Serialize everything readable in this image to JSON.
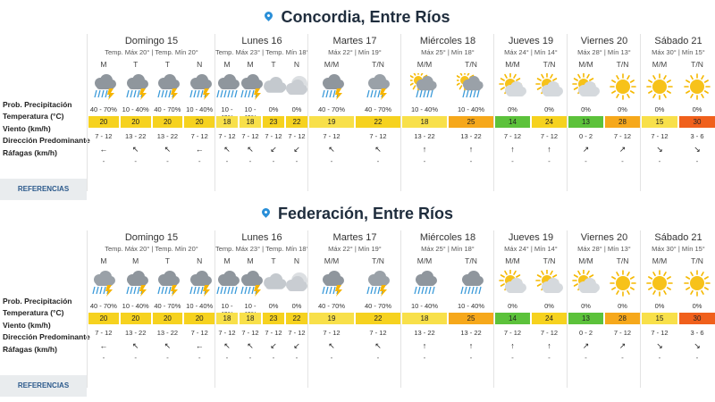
{
  "row_labels": {
    "prob": "Prob. Precipitación",
    "temp": "Temperatura (°C)",
    "wind": "Viento (km/h)",
    "dir": "Dirección Predominante",
    "gust": "Ráfagas (km/h)"
  },
  "reference_button": "REFERENCIAS",
  "temp_colors": {
    "yellow": "#f6d21f",
    "light_yellow": "#f8e04a",
    "green": "#5cc23b",
    "orange": "#f6a81b",
    "red_orange": "#f0601c"
  },
  "locations": [
    {
      "name": "Concordia, Entre Ríos",
      "days": [
        {
          "name": "Domingo 15",
          "minmax": "Temp. Máx 20° | Temp. Mín 20°",
          "slots": [
            {
              "period": "M",
              "icon": "storm-rain",
              "prob": "40 - 70%",
              "temp": "20",
              "color": "#f6d21f",
              "wind": "7 - 12",
              "dir": "←",
              "gust": "-"
            },
            {
              "period": "T",
              "icon": "storm-rain",
              "prob": "10 - 40%",
              "temp": "20",
              "color": "#f6d21f",
              "wind": "13 - 22",
              "dir": "↖",
              "gust": "-"
            },
            {
              "period": "T",
              "icon": "storm-rain",
              "prob": "40 - 70%",
              "temp": "20",
              "color": "#f6d21f",
              "wind": "13 - 22",
              "dir": "↖",
              "gust": "-"
            },
            {
              "period": "N",
              "icon": "storm-rain",
              "prob": "10 - 40%",
              "temp": "20",
              "color": "#f6d21f",
              "wind": "7 - 12",
              "dir": "←",
              "gust": "-"
            }
          ]
        },
        {
          "name": "Lunes 16",
          "minmax": "Temp. Máx 23° | Temp. Mín 18°",
          "slots": [
            {
              "period": "M",
              "icon": "rain-heavy",
              "prob": "10 - 40%",
              "temp": "18",
              "color": "#f8e04a",
              "wind": "7 - 12",
              "dir": "↖",
              "gust": "-"
            },
            {
              "period": "M",
              "icon": "storm-rain",
              "prob": "10 - 40%",
              "temp": "18",
              "color": "#f8e04a",
              "wind": "7 - 12",
              "dir": "↖",
              "gust": "-"
            },
            {
              "period": "T",
              "icon": "cloudy",
              "prob": "0%",
              "temp": "23",
              "color": "#f6d21f",
              "wind": "7 - 12",
              "dir": "↙",
              "gust": "-"
            },
            {
              "period": "N",
              "icon": "partly-moon",
              "prob": "0%",
              "temp": "22",
              "color": "#f6d21f",
              "wind": "7 - 12",
              "dir": "↙",
              "gust": "-"
            }
          ]
        },
        {
          "name": "Martes 17",
          "minmax": "Máx 22° | Mín 19°",
          "slots": [
            {
              "period": "M/M",
              "icon": "storm-rain",
              "prob": "40 - 70%",
              "temp": "19",
              "color": "#f8e04a",
              "wind": "7 - 12",
              "dir": "↖",
              "gust": "-"
            },
            {
              "period": "T/N",
              "icon": "rain-storm-bolt",
              "prob": "40 - 70%",
              "temp": "22",
              "color": "#f6d21f",
              "wind": "7 - 12",
              "dir": "↖",
              "gust": "-"
            }
          ]
        },
        {
          "name": "Miércoles 18",
          "minmax": "Máx 25° | Mín 18°",
          "slots": [
            {
              "period": "M/M",
              "icon": "sun-rain",
              "prob": "10 - 40%",
              "temp": "18",
              "color": "#f8e04a",
              "wind": "13 - 22",
              "dir": "↑",
              "gust": "-"
            },
            {
              "period": "T/N",
              "icon": "sun-rain",
              "prob": "10 - 40%",
              "temp": "25",
              "color": "#f6a81b",
              "wind": "13 - 22",
              "dir": "↑",
              "gust": "-"
            }
          ]
        },
        {
          "name": "Jueves 19",
          "minmax": "Máx 24° | Mín 14°",
          "slots": [
            {
              "period": "M/M",
              "icon": "sun-cloud",
              "prob": "0%",
              "temp": "14",
              "color": "#5cc23b",
              "wind": "7 - 12",
              "dir": "↑",
              "gust": "-"
            },
            {
              "period": "T/N",
              "icon": "sun-cloud",
              "prob": "0%",
              "temp": "24",
              "color": "#f6d21f",
              "wind": "7 - 12",
              "dir": "↑",
              "gust": "-"
            }
          ]
        },
        {
          "name": "Viernes 20",
          "minmax": "Máx 28° | Mín 13°",
          "slots": [
            {
              "period": "M/M",
              "icon": "sun-cloud",
              "prob": "0%",
              "temp": "13",
              "color": "#5cc23b",
              "wind": "0 - 2",
              "dir": "↗",
              "gust": "-"
            },
            {
              "period": "T/N",
              "icon": "sun",
              "prob": "0%",
              "temp": "28",
              "color": "#f6a81b",
              "wind": "7 - 12",
              "dir": "↗",
              "gust": "-"
            }
          ]
        },
        {
          "name": "Sábado 21",
          "minmax": "Máx 30° | Mín 15°",
          "slots": [
            {
              "period": "M/M",
              "icon": "sun",
              "prob": "0%",
              "temp": "15",
              "color": "#f8e04a",
              "wind": "7 - 12",
              "dir": "↘",
              "gust": "-"
            },
            {
              "period": "T/N",
              "icon": "sun",
              "prob": "0%",
              "temp": "30",
              "color": "#f0601c",
              "wind": "3 - 6",
              "dir": "↘",
              "gust": "-"
            }
          ]
        }
      ]
    },
    {
      "name": "Federación, Entre Ríos",
      "days": [
        {
          "name": "Domingo 15",
          "minmax": "Temp. Máx 20° | Temp. Mín 20°",
          "slots": [
            {
              "period": "M",
              "icon": "rain-storm-bolt",
              "prob": "40 - 70%",
              "temp": "20",
              "color": "#f6d21f",
              "wind": "7 - 12",
              "dir": "←",
              "gust": "-"
            },
            {
              "period": "M",
              "icon": "storm-rain",
              "prob": "10 - 40%",
              "temp": "20",
              "color": "#f6d21f",
              "wind": "13 - 22",
              "dir": "↖",
              "gust": "-"
            },
            {
              "period": "T",
              "icon": "storm-rain",
              "prob": "40 - 70%",
              "temp": "20",
              "color": "#f6d21f",
              "wind": "13 - 22",
              "dir": "↖",
              "gust": "-"
            },
            {
              "period": "N",
              "icon": "storm-rain",
              "prob": "10 - 40%",
              "temp": "20",
              "color": "#f6d21f",
              "wind": "7 - 12",
              "dir": "←",
              "gust": "-"
            }
          ]
        },
        {
          "name": "Lunes 16",
          "minmax": "Temp. Máx 23° | Temp. Mín 18°",
          "slots": [
            {
              "period": "M",
              "icon": "rain-heavy",
              "prob": "10 - 40%",
              "temp": "18",
              "color": "#f8e04a",
              "wind": "7 - 12",
              "dir": "↖",
              "gust": "-"
            },
            {
              "period": "M",
              "icon": "storm-rain",
              "prob": "10 - 40%",
              "temp": "18",
              "color": "#f8e04a",
              "wind": "7 - 12",
              "dir": "↖",
              "gust": "-"
            },
            {
              "period": "T",
              "icon": "cloudy",
              "prob": "0%",
              "temp": "23",
              "color": "#f6d21f",
              "wind": "7 - 12",
              "dir": "↙",
              "gust": "-"
            },
            {
              "period": "N",
              "icon": "partly-moon",
              "prob": "0%",
              "temp": "22",
              "color": "#f6d21f",
              "wind": "7 - 12",
              "dir": "↙",
              "gust": "-"
            }
          ]
        },
        {
          "name": "Martes 17",
          "minmax": "Máx 22° | Mín 19°",
          "slots": [
            {
              "period": "M/M",
              "icon": "storm-rain",
              "prob": "40 - 70%",
              "temp": "19",
              "color": "#f8e04a",
              "wind": "7 - 12",
              "dir": "↖",
              "gust": "-"
            },
            {
              "period": "T/N",
              "icon": "rain-storm-bolt",
              "prob": "40 - 70%",
              "temp": "22",
              "color": "#f6d21f",
              "wind": "7 - 12",
              "dir": "↖",
              "gust": "-"
            }
          ]
        },
        {
          "name": "Miércoles 18",
          "minmax": "Máx 25° | Mín 18°",
          "slots": [
            {
              "period": "M/M",
              "icon": "rain-heavy",
              "prob": "10 - 40%",
              "temp": "18",
              "color": "#f8e04a",
              "wind": "13 - 22",
              "dir": "↑",
              "gust": "-"
            },
            {
              "period": "T/N",
              "icon": "rain-heavy",
              "prob": "10 - 40%",
              "temp": "25",
              "color": "#f6a81b",
              "wind": "13 - 22",
              "dir": "↑",
              "gust": "-"
            }
          ]
        },
        {
          "name": "Jueves 19",
          "minmax": "Máx 24° | Mín 14°",
          "slots": [
            {
              "period": "M/M",
              "icon": "sun-cloud",
              "prob": "0%",
              "temp": "14",
              "color": "#5cc23b",
              "wind": "7 - 12",
              "dir": "↑",
              "gust": "-"
            },
            {
              "period": "T/N",
              "icon": "sun-cloud",
              "prob": "0%",
              "temp": "24",
              "color": "#f6d21f",
              "wind": "7 - 12",
              "dir": "↑",
              "gust": "-"
            }
          ]
        },
        {
          "name": "Viernes 20",
          "minmax": "Máx 28° | Mín 13°",
          "slots": [
            {
              "period": "M/M",
              "icon": "sun-cloud",
              "prob": "0%",
              "temp": "13",
              "color": "#5cc23b",
              "wind": "0 - 2",
              "dir": "↗",
              "gust": "-"
            },
            {
              "period": "T/N",
              "icon": "sun",
              "prob": "0%",
              "temp": "28",
              "color": "#f6a81b",
              "wind": "7 - 12",
              "dir": "↗",
              "gust": "-"
            }
          ]
        },
        {
          "name": "Sábado 21",
          "minmax": "Máx 30° | Mín 15°",
          "slots": [
            {
              "period": "M/M",
              "icon": "sun",
              "prob": "0%",
              "temp": "15",
              "color": "#f8e04a",
              "wind": "7 - 12",
              "dir": "↘",
              "gust": "-"
            },
            {
              "period": "T/N",
              "icon": "sun",
              "prob": "0%",
              "temp": "30",
              "color": "#f0601c",
              "wind": "3 - 6",
              "dir": "↘",
              "gust": "-"
            }
          ]
        }
      ]
    }
  ]
}
